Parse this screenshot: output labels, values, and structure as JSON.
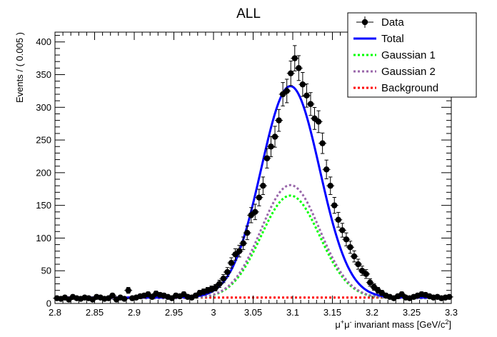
{
  "chart_data": {
    "type": "scatter",
    "title": "ALL",
    "xlabel_parts": [
      "μ",
      "+",
      "μ",
      "-",
      " invariant mass [GeV/c",
      "2",
      "]"
    ],
    "ylabel": "Events / ( 0.005 )",
    "xlim": [
      2.8,
      3.3
    ],
    "ylim": [
      0,
      415
    ],
    "x_ticks": [
      2.8,
      2.85,
      2.9,
      2.95,
      3.0,
      3.05,
      3.1,
      3.15,
      3.2,
      3.25,
      3.3
    ],
    "x_tick_labels": [
      "2.8",
      "2.85",
      "2.9",
      "2.95",
      "3",
      "3.05",
      "3.1",
      "3.15",
      "3.2",
      "3.25",
      "3.3"
    ],
    "y_ticks": [
      0,
      50,
      100,
      150,
      200,
      250,
      300,
      350,
      400
    ],
    "y_tick_labels": [
      "0",
      "50",
      "100",
      "150",
      "200",
      "250",
      "300",
      "350",
      "400"
    ],
    "grid": false,
    "legend_placement": "top-right",
    "legend": [
      {
        "label": "Data",
        "style": "marker",
        "color": "#000000"
      },
      {
        "label": "Total",
        "style": "solid",
        "color": "#0000ff"
      },
      {
        "label": "Gaussian 1",
        "style": "dotted",
        "color": "#00ff00"
      },
      {
        "label": "Gaussian 2",
        "style": "dotted",
        "color": "#9966aa"
      },
      {
        "label": "Background",
        "style": "dotted",
        "color": "#ff0000"
      }
    ],
    "series": [
      {
        "name": "Data",
        "kind": "points_with_errors",
        "color": "#000000",
        "x": [
          2.8025,
          2.8075,
          2.8125,
          2.8175,
          2.8225,
          2.8275,
          2.8325,
          2.8375,
          2.8425,
          2.8475,
          2.8525,
          2.8575,
          2.8625,
          2.8675,
          2.8725,
          2.8775,
          2.8825,
          2.8875,
          2.8925,
          2.8975,
          2.9025,
          2.9075,
          2.9125,
          2.9175,
          2.9225,
          2.9275,
          2.9325,
          2.9375,
          2.9425,
          2.9475,
          2.9525,
          2.9575,
          2.9625,
          2.9675,
          2.9725,
          2.9775,
          2.9825,
          2.9875,
          2.9925,
          2.9975,
          3.0025,
          3.0075,
          3.0125,
          3.0175,
          3.0225,
          3.0275,
          3.0325,
          3.0375,
          3.0425,
          3.0475,
          3.0525,
          3.0575,
          3.0625,
          3.0675,
          3.0725,
          3.0775,
          3.0825,
          3.0875,
          3.0925,
          3.0975,
          3.1025,
          3.1075,
          3.1125,
          3.1175,
          3.1225,
          3.1275,
          3.1325,
          3.1375,
          3.1425,
          3.1475,
          3.1525,
          3.1575,
          3.1625,
          3.1675,
          3.1725,
          3.1775,
          3.1825,
          3.1875,
          3.1925,
          3.1975,
          3.2025,
          3.2075,
          3.2125,
          3.2175,
          3.2225,
          3.2275,
          3.2325,
          3.2375,
          3.2425,
          3.2475,
          3.2525,
          3.2575,
          3.2625,
          3.2675,
          3.2725,
          3.2775,
          3.2825,
          3.2875,
          3.2925,
          3.2975
        ],
        "y": [
          8,
          7,
          9,
          6,
          10,
          8,
          7,
          9,
          8,
          6,
          10,
          9,
          7,
          8,
          12,
          6,
          9,
          7,
          20,
          8,
          9,
          11,
          12,
          14,
          10,
          15,
          13,
          12,
          10,
          8,
          12,
          11,
          14,
          10,
          9,
          12,
          16,
          18,
          20,
          22,
          24,
          30,
          38,
          48,
          62,
          75,
          80,
          92,
          108,
          135,
          140,
          162,
          180,
          222,
          240,
          255,
          280,
          320,
          325,
          352,
          375,
          360,
          335,
          318,
          305,
          283,
          278,
          245,
          205,
          180,
          150,
          128,
          112,
          98,
          86,
          72,
          60,
          50,
          45,
          32,
          25,
          20,
          16,
          12,
          10,
          8,
          11,
          14,
          9,
          8,
          10,
          12,
          14,
          13,
          11,
          9,
          10,
          8,
          9,
          10
        ],
        "yerr": [
          2.8,
          2.6,
          3.0,
          2.4,
          3.2,
          2.8,
          2.6,
          3.0,
          2.8,
          2.4,
          3.2,
          3.0,
          2.6,
          2.8,
          3.5,
          2.4,
          3.0,
          2.6,
          4.5,
          2.8,
          3.0,
          3.3,
          3.5,
          3.7,
          3.2,
          3.9,
          3.6,
          3.5,
          3.2,
          2.8,
          3.5,
          3.3,
          3.7,
          3.2,
          3.0,
          3.5,
          4.0,
          4.2,
          4.5,
          4.7,
          4.9,
          5.5,
          6.2,
          6.9,
          7.9,
          8.7,
          8.9,
          9.6,
          10.4,
          11.6,
          11.8,
          12.7,
          13.4,
          14.9,
          15.5,
          16.0,
          16.7,
          17.9,
          18.0,
          18.8,
          19.4,
          19.0,
          18.3,
          17.8,
          17.5,
          16.8,
          16.7,
          15.7,
          14.3,
          13.4,
          12.2,
          11.3,
          10.6,
          9.9,
          9.3,
          8.5,
          7.7,
          7.1,
          6.7,
          5.7,
          5.0,
          4.5,
          4.0,
          3.5,
          3.2,
          2.8,
          3.3,
          3.7,
          3.0,
          2.8,
          3.2,
          3.5,
          3.7,
          3.6,
          3.3,
          3.0,
          3.2,
          2.8,
          3.0,
          3.2
        ]
      },
      {
        "name": "Total",
        "kind": "curve",
        "color": "#0000ff",
        "model": "Gaussian 1 + Gaussian 2 + Background"
      },
      {
        "name": "Gaussian 1",
        "kind": "curve",
        "color": "#00ff00",
        "model": "gaussian",
        "mean": 3.097,
        "sigma": 0.037,
        "amplitude": 157,
        "offset": 8
      },
      {
        "name": "Gaussian 2",
        "kind": "curve",
        "color": "#9966aa",
        "model": "gaussian",
        "mean": 3.097,
        "sigma": 0.037,
        "amplitude": 173,
        "offset": 8
      },
      {
        "name": "Background",
        "kind": "curve",
        "color": "#ff0000",
        "model": "constant",
        "value": 9
      }
    ]
  }
}
